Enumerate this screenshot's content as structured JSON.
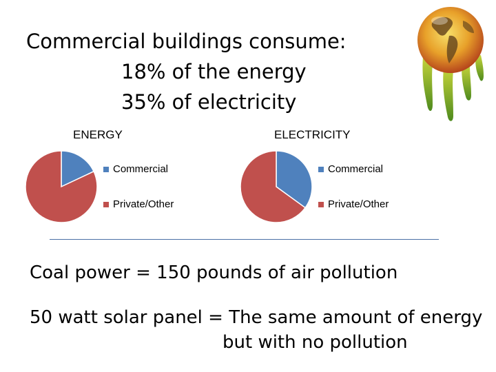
{
  "headline": {
    "main": "Commercial buildings consume:",
    "energy_line": "18% of the energy",
    "electricity_line": "35% of electricity"
  },
  "chart_data": [
    {
      "type": "pie",
      "title": "ENERGY",
      "categories": [
        "Commercial",
        "Private/Other"
      ],
      "values": [
        18,
        82
      ],
      "colors": [
        "#4f81bd",
        "#c0504d"
      ],
      "legend_position": "right"
    },
    {
      "type": "pie",
      "title": "ELECTRICITY",
      "categories": [
        "Commercial",
        "Private/Other"
      ],
      "values": [
        35,
        65
      ],
      "colors": [
        "#4f81bd",
        "#c0504d"
      ],
      "legend_position": "right"
    }
  ],
  "body": {
    "coal": "Coal power = 150 pounds of air pollution",
    "solar_line1": "50 watt solar panel = The same amount of energy",
    "solar_line2": "but with no pollution"
  },
  "decoration": {
    "icon": "melting-globe-icon"
  }
}
